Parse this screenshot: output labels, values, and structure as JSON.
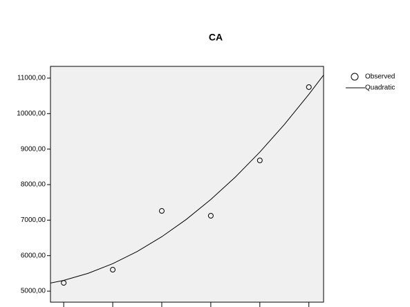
{
  "chart_data": {
    "type": "scatter",
    "title": "CA",
    "series": [
      {
        "name": "Observed",
        "type": "scatter",
        "color": "#000000",
        "x": [
          1,
          2,
          3,
          4,
          5,
          6
        ],
        "values": [
          5234,
          5604,
          7260,
          7124,
          8682,
          10747
        ]
      },
      {
        "name": "Quadratic",
        "type": "line",
        "color": "#000000",
        "x": [
          0.73,
          1,
          1.5,
          2,
          2.5,
          3,
          3.5,
          4,
          4.5,
          5,
          5.5,
          6,
          6.3
        ],
        "values": [
          5227,
          5304,
          5503,
          5774,
          6118,
          6533,
          7021,
          7581,
          8212,
          8917,
          9693,
          10542,
          11086
        ]
      }
    ],
    "xlim": [
      0.73,
      6.3
    ],
    "xticks": [
      1,
      2,
      3,
      4,
      5,
      6
    ],
    "ylim": [
      4690,
      11330
    ],
    "yticks": [
      {
        "value": 5000,
        "label": "5000,00"
      },
      {
        "value": 6000,
        "label": "6000,00"
      },
      {
        "value": 7000,
        "label": "7000,00"
      },
      {
        "value": 8000,
        "label": "8000,00"
      },
      {
        "value": 9000,
        "label": "9000,00"
      },
      {
        "value": 10000,
        "label": "10000,00"
      },
      {
        "value": 11000,
        "label": "11000,00"
      }
    ],
    "grid": false,
    "legend": "right",
    "background": "#f0f0f0"
  }
}
